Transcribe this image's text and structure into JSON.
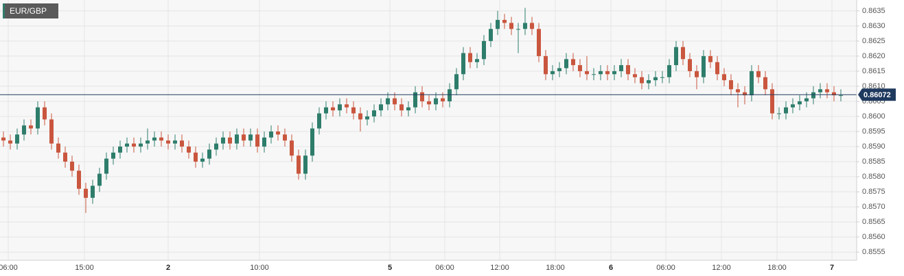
{
  "chart_data": {
    "type": "candlestick",
    "title": "EUR/GBP",
    "open": [
      0.8593,
      0.8592,
      0.8591,
      0.8594,
      0.8597,
      0.8596,
      0.8603,
      0.8599,
      0.8591,
      0.8588,
      0.8585,
      0.8582,
      0.8576,
      0.8573,
      0.8577,
      0.8581,
      0.8586,
      0.8588,
      0.859,
      0.8591,
      0.859,
      0.8591,
      0.8592,
      0.8593,
      0.8592,
      0.8591,
      0.8592,
      0.859,
      0.8588,
      0.8585,
      0.8586,
      0.8589,
      0.8591,
      0.8593,
      0.8591,
      0.8594,
      0.8592,
      0.8594,
      0.859,
      0.8593,
      0.8595,
      0.8594,
      0.8592,
      0.8587,
      0.8581,
      0.8587,
      0.8596,
      0.8601,
      0.8603,
      0.8602,
      0.8604,
      0.8603,
      0.8601,
      0.8599,
      0.86,
      0.8602,
      0.8604,
      0.8606,
      0.8604,
      0.8602,
      0.8603,
      0.8608,
      0.8605,
      0.8604,
      0.8606,
      0.8605,
      0.8609,
      0.8614,
      0.8621,
      0.8618,
      0.8619,
      0.8625,
      0.8629,
      0.8632,
      0.8631,
      0.8629,
      0.8629,
      0.8631,
      0.8629,
      0.862,
      0.8614,
      0.8615,
      0.8616,
      0.8619,
      0.8617,
      0.8615,
      0.8614,
      0.8614,
      0.8615,
      0.8614,
      0.8615,
      0.8617,
      0.8614,
      0.8613,
      0.8611,
      0.8612,
      0.8613,
      0.8613,
      0.8617,
      0.8623,
      0.8619,
      0.8615,
      0.8613,
      0.862,
      0.8618,
      0.8614,
      0.8612,
      0.8609,
      0.8608,
      0.8607,
      0.8615,
      0.8613,
      0.8609,
      0.8601,
      0.8601,
      0.8603,
      0.8604,
      0.8605,
      0.8606,
      0.8608,
      0.8609,
      0.8608,
      0.8607
    ],
    "high": [
      0.8595,
      0.8594,
      0.8596,
      0.8599,
      0.8599,
      0.8605,
      0.8605,
      0.8601,
      0.8593,
      0.859,
      0.8587,
      0.8584,
      0.8578,
      0.8579,
      0.8583,
      0.8588,
      0.859,
      0.8592,
      0.8593,
      0.8593,
      0.8593,
      0.8596,
      0.8595,
      0.8595,
      0.8594,
      0.8594,
      0.8594,
      0.8592,
      0.859,
      0.8588,
      0.8591,
      0.8593,
      0.8595,
      0.8595,
      0.8596,
      0.8596,
      0.8596,
      0.8596,
      0.8595,
      0.8597,
      0.8597,
      0.8596,
      0.8594,
      0.8589,
      0.8589,
      0.8598,
      0.8603,
      0.8605,
      0.8605,
      0.8606,
      0.8606,
      0.8605,
      0.8603,
      0.8602,
      0.8604,
      0.8606,
      0.8608,
      0.8608,
      0.8606,
      0.8605,
      0.861,
      0.861,
      0.8607,
      0.8608,
      0.8608,
      0.8611,
      0.8616,
      0.8623,
      0.8623,
      0.8621,
      0.8627,
      0.8631,
      0.8635,
      0.8634,
      0.8633,
      0.8631,
      0.8636,
      0.8633,
      0.8631,
      0.8622,
      0.8617,
      0.8618,
      0.8621,
      0.8621,
      0.8619,
      0.862,
      0.8616,
      0.8617,
      0.8617,
      0.8617,
      0.8619,
      0.8619,
      0.8616,
      0.8615,
      0.8614,
      0.8615,
      0.8615,
      0.8619,
      0.8625,
      0.8625,
      0.8621,
      0.8617,
      0.8622,
      0.8622,
      0.862,
      0.8616,
      0.8614,
      0.8611,
      0.861,
      0.8617,
      0.8617,
      0.8615,
      0.8611,
      0.8603,
      0.8605,
      0.8606,
      0.8607,
      0.8608,
      0.861,
      0.8611,
      0.8611,
      0.861,
      0.8609
    ],
    "low": [
      0.859,
      0.8589,
      0.8589,
      0.8592,
      0.8594,
      0.8594,
      0.8597,
      0.8589,
      0.8586,
      0.8583,
      0.858,
      0.8574,
      0.8568,
      0.8571,
      0.8575,
      0.8579,
      0.8584,
      0.8586,
      0.8588,
      0.8588,
      0.8588,
      0.8589,
      0.859,
      0.859,
      0.8589,
      0.8589,
      0.8588,
      0.8586,
      0.8583,
      0.8583,
      0.8584,
      0.8587,
      0.8589,
      0.8589,
      0.8589,
      0.859,
      0.859,
      0.8588,
      0.8588,
      0.8591,
      0.8592,
      0.859,
      0.8585,
      0.8579,
      0.8579,
      0.8585,
      0.8594,
      0.8599,
      0.86,
      0.86,
      0.8601,
      0.8599,
      0.8595,
      0.8597,
      0.8598,
      0.86,
      0.8602,
      0.8602,
      0.86,
      0.86,
      0.8601,
      0.8603,
      0.8602,
      0.8602,
      0.8603,
      0.8603,
      0.8607,
      0.8612,
      0.8616,
      0.8616,
      0.8617,
      0.8623,
      0.8627,
      0.8629,
      0.8627,
      0.8621,
      0.8627,
      0.8627,
      0.8618,
      0.8612,
      0.8612,
      0.8613,
      0.8614,
      0.8615,
      0.8613,
      0.8612,
      0.8612,
      0.8612,
      0.8612,
      0.8612,
      0.8613,
      0.8612,
      0.8611,
      0.8609,
      0.8609,
      0.861,
      0.8611,
      0.8611,
      0.8615,
      0.8617,
      0.8613,
      0.8609,
      0.8611,
      0.8616,
      0.8612,
      0.861,
      0.8607,
      0.8603,
      0.8604,
      0.8605,
      0.8611,
      0.8607,
      0.8599,
      0.8599,
      0.8599,
      0.8601,
      0.8602,
      0.8603,
      0.8604,
      0.8606,
      0.8606,
      0.8605,
      0.8605
    ],
    "close": [
      0.8592,
      0.8591,
      0.8594,
      0.8597,
      0.8596,
      0.8603,
      0.8599,
      0.8591,
      0.8588,
      0.8585,
      0.8582,
      0.8576,
      0.8573,
      0.8577,
      0.8581,
      0.8586,
      0.8588,
      0.859,
      0.8591,
      0.859,
      0.8591,
      0.8592,
      0.8593,
      0.8592,
      0.8591,
      0.8592,
      0.859,
      0.8588,
      0.8585,
      0.8586,
      0.8589,
      0.8591,
      0.8593,
      0.8591,
      0.8594,
      0.8592,
      0.8594,
      0.859,
      0.8593,
      0.8595,
      0.8594,
      0.8592,
      0.8587,
      0.8581,
      0.8587,
      0.8596,
      0.8601,
      0.8603,
      0.8602,
      0.8604,
      0.8603,
      0.8601,
      0.8599,
      0.86,
      0.8602,
      0.8604,
      0.8606,
      0.8604,
      0.8602,
      0.8603,
      0.8608,
      0.8605,
      0.8604,
      0.8606,
      0.8605,
      0.8609,
      0.8614,
      0.8621,
      0.8618,
      0.8619,
      0.8625,
      0.8629,
      0.8632,
      0.8631,
      0.8629,
      0.8629,
      0.8631,
      0.8629,
      0.862,
      0.8614,
      0.8615,
      0.8616,
      0.8619,
      0.8617,
      0.8615,
      0.8614,
      0.8614,
      0.8615,
      0.8614,
      0.8615,
      0.8617,
      0.8614,
      0.8613,
      0.8611,
      0.8612,
      0.8613,
      0.8613,
      0.8617,
      0.8623,
      0.8619,
      0.8615,
      0.8613,
      0.862,
      0.8618,
      0.8614,
      0.8612,
      0.8609,
      0.8608,
      0.8607,
      0.8615,
      0.8613,
      0.8609,
      0.8601,
      0.8601,
      0.8603,
      0.8604,
      0.8605,
      0.8606,
      0.8608,
      0.8609,
      0.8608,
      0.8607,
      0.8607
    ],
    "up_color": "#2e7d6b",
    "down_color": "#c9563e",
    "xlim": [
      0,
      124.8
    ],
    "xticks": [
      {
        "value": 1.2,
        "label": "06:00"
      },
      {
        "value": 12.3,
        "label": "15:00"
      },
      {
        "value": 24.5,
        "label": "2"
      },
      {
        "value": 37.8,
        "label": "10:00"
      },
      {
        "value": 56.8,
        "label": "5"
      },
      {
        "value": 64.8,
        "label": "06:00"
      },
      {
        "value": 72.8,
        "label": "12:00"
      },
      {
        "value": 80.9,
        "label": "18:00"
      },
      {
        "value": 89,
        "label": "6"
      },
      {
        "value": 97,
        "label": "06:00"
      },
      {
        "value": 105.1,
        "label": "12:00"
      },
      {
        "value": 113.2,
        "label": "18:00"
      },
      {
        "value": 121.2,
        "label": "7"
      }
    ],
    "ylim": [
      0.85523,
      0.86386
    ],
    "yticks": [
      0.8555,
      {
        "value": 0.856,
        "label": "0.8560"
      },
      0.8565,
      {
        "value": 0.857,
        "label": "0.8570"
      },
      0.8575,
      {
        "value": 0.858,
        "label": "0.8580"
      },
      0.8585,
      {
        "value": 0.859,
        "label": "0.8590"
      },
      0.8595,
      {
        "value": 0.86,
        "label": "0.8600"
      },
      0.8605,
      {
        "value": 0.861,
        "label": "0.8610"
      },
      0.8615,
      {
        "value": 0.862,
        "label": "0.8620"
      },
      0.8625,
      {
        "value": 0.863,
        "label": "0.8630"
      },
      0.8635
    ],
    "last_price": 0.86072,
    "grid": true
  }
}
